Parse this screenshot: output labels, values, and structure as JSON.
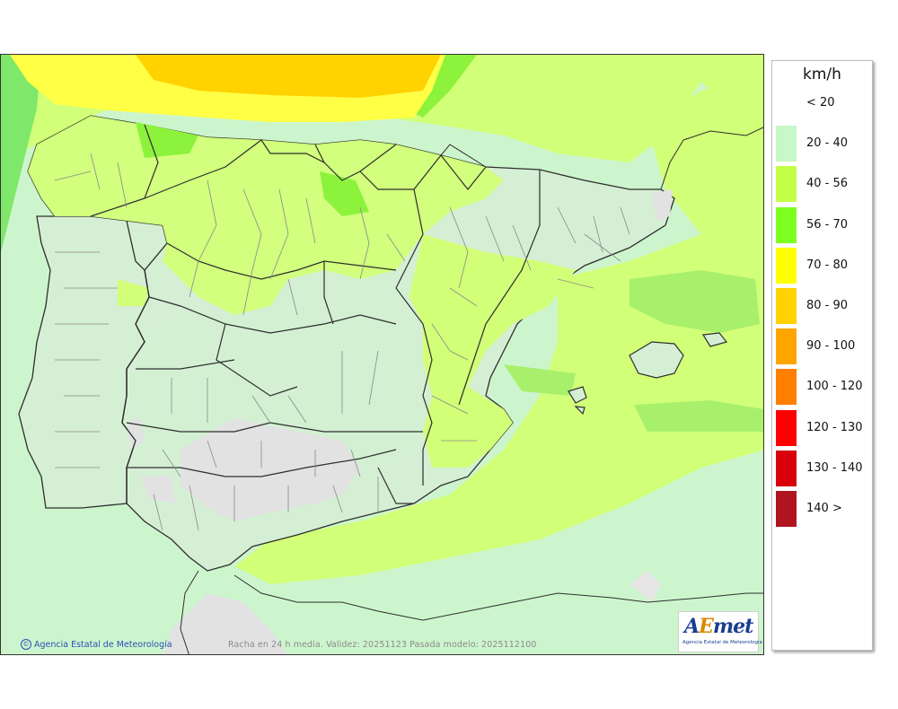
{
  "legend": {
    "title": "km/h",
    "items": [
      {
        "label": "< 20",
        "color": "#ffffff"
      },
      {
        "label": "20 - 40",
        "color": "#c8f7c8"
      },
      {
        "label": "40 - 56",
        "color": "#c4ff47"
      },
      {
        "label": "56 - 70",
        "color": "#7dff1f"
      },
      {
        "label": "70 - 80",
        "color": "#ffff00"
      },
      {
        "label": "80 - 90",
        "color": "#ffd200"
      },
      {
        "label": "90 - 100",
        "color": "#ffa500"
      },
      {
        "label": "100 - 120",
        "color": "#ff7f00"
      },
      {
        "label": "120 - 130",
        "color": "#ff0000"
      },
      {
        "label": "130 - 140",
        "color": "#d7000b"
      },
      {
        "label": "140 >",
        "color": "#b0141e"
      }
    ]
  },
  "map": {
    "copyright": "Agencia Estatal de Meteorología",
    "copyright_symbol": "©",
    "caption": "Racha en 24 h media. Validez: 20251123 Pasada modelo: 2025112100",
    "logo_text": {
      "a": "A",
      "e": "E",
      "rest": "met"
    },
    "logo_subtext": "Agencia Estatal de Meteorología"
  },
  "colors": {
    "sea_base": "#cdf5cd",
    "land_light": "#d5efd5",
    "band_40_56": "#d2ff78",
    "band_56_70": "#8cf23c",
    "band_70_80": "#ffff46",
    "band_80_90": "#ffd200",
    "mountain_grey": "#e0e0e0",
    "borders": "#2e2e2e",
    "province_lines": "#8a8a8a"
  }
}
